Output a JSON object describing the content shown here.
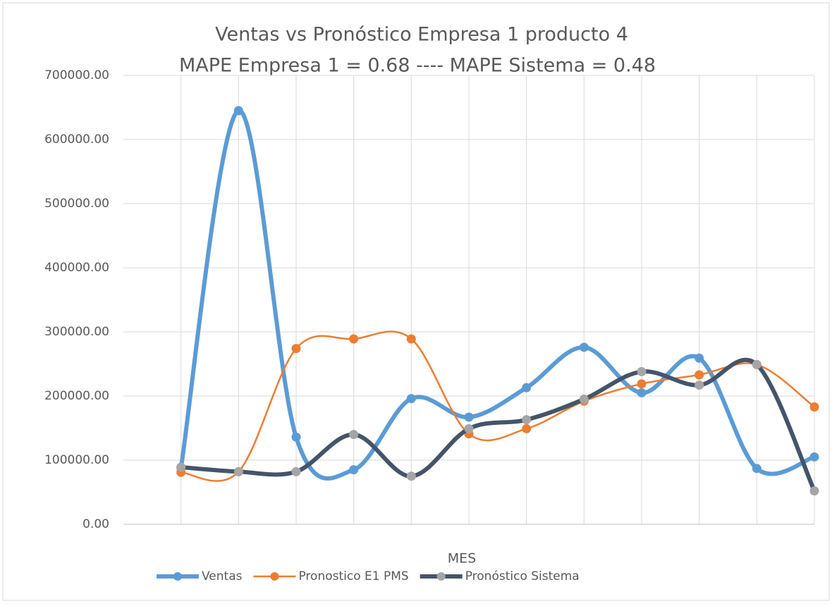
{
  "chart_data": {
    "type": "line",
    "title": "Ventas  vs Pronóstico Empresa 1 producto 4",
    "subtitle": "MAPE Empresa 1 = 0.68 ---- MAPE Sistema = 0.48",
    "x_label": "MES",
    "categories": [
      null,
      null,
      null,
      null,
      null,
      null,
      null,
      null,
      null,
      null,
      null,
      null
    ],
    "series": [
      {
        "name": "Ventas",
        "color": "#5b9bd5",
        "marker_color": "#5b9bd5",
        "values": [
          88000,
          645000,
          136000,
          85000,
          196000,
          167000,
          213000,
          276000,
          205000,
          259000,
          87000,
          105000
        ]
      },
      {
        "name": "Pronostico E1 PMS",
        "color": "#ed7d31",
        "marker_color": "#ed7d31",
        "values": [
          81000,
          82000,
          274000,
          289000,
          289000,
          141000,
          149000,
          192000,
          219000,
          233000,
          249000,
          183000
        ]
      },
      {
        "name": "Pronóstico Sistema",
        "color": "#44546a",
        "marker_color": "#a5a5a5",
        "values": [
          89000,
          82000,
          82000,
          140000,
          75000,
          149000,
          163000,
          195000,
          238000,
          217000,
          249000,
          52000
        ]
      }
    ],
    "ylim": [
      0,
      700000
    ],
    "yticks": [
      {
        "value": 0,
        "label": "0.00"
      },
      {
        "value": 100000,
        "label": "100000.00"
      },
      {
        "value": 200000,
        "label": "200000.00"
      },
      {
        "value": 300000,
        "label": "300000.00"
      },
      {
        "value": 400000,
        "label": "400000.00"
      },
      {
        "value": 500000,
        "label": "500000.00"
      },
      {
        "value": 600000,
        "label": "600000.00"
      },
      {
        "value": 700000,
        "label": "700000.00"
      }
    ],
    "grid": true,
    "smooth": true,
    "legend": "bottom"
  }
}
